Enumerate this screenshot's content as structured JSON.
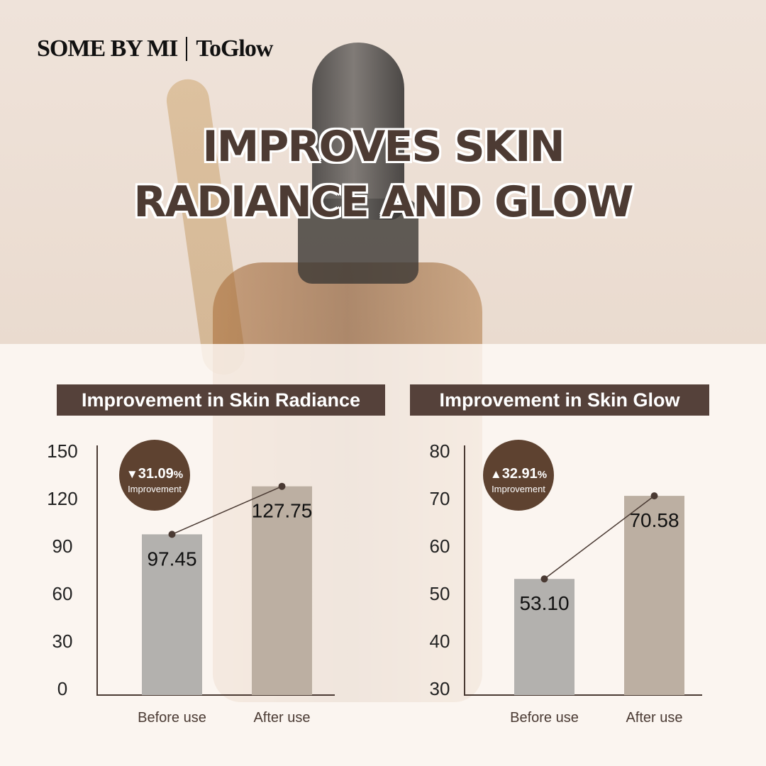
{
  "brand": {
    "logo_left": "SOME BY MI",
    "logo_right": "ToGlow"
  },
  "headline": {
    "line1": "IMPROVES SKIN",
    "line2": "RADIANCE AND GLOW"
  },
  "colors": {
    "header_bg": "#55413a",
    "badge_bg": "#5e4230",
    "before_bar": "#b3b1ae",
    "after_bar": "#bcafa2",
    "title_text": "#4d3b33"
  },
  "chart_data": [
    {
      "type": "bar",
      "title": "Improvement in Skin Radiance",
      "categories": [
        "Before use",
        "After use"
      ],
      "values": [
        97.45,
        127.75
      ],
      "value_labels": [
        "97.45",
        "127.75"
      ],
      "ylim": [
        0,
        150
      ],
      "yticks": [
        "0",
        "30",
        "60",
        "90",
        "120",
        "150"
      ],
      "badge": {
        "arrow": "▼",
        "value": "31.09",
        "unit": "%",
        "label": "Improvement"
      },
      "grid": false
    },
    {
      "type": "bar",
      "title": "Improvement in Skin Glow",
      "categories": [
        "Before use",
        "After use"
      ],
      "values": [
        53.1,
        70.58
      ],
      "value_labels": [
        "53.10",
        "70.58"
      ],
      "ylim": [
        30,
        80
      ],
      "yticks": [
        "30",
        "40",
        "50",
        "60",
        "70",
        "80"
      ],
      "badge": {
        "arrow": "▲",
        "value": "32.91",
        "unit": "%",
        "label": "Improvement"
      },
      "grid": false
    }
  ]
}
